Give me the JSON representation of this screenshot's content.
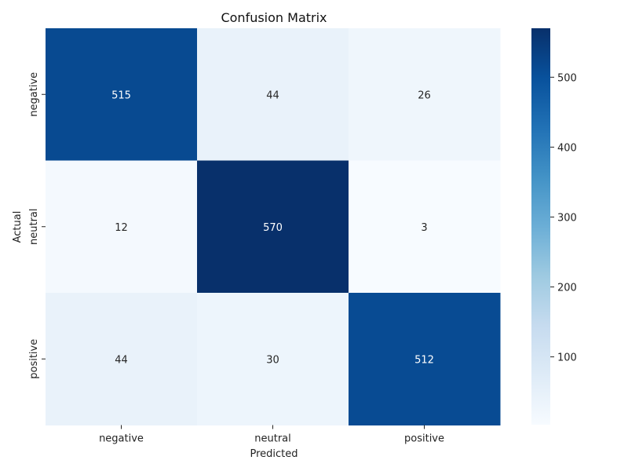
{
  "chart_data": {
    "type": "heatmap",
    "title": "Confusion Matrix",
    "xlabel": "Predicted",
    "ylabel": "Actual",
    "x_categories": [
      "negative",
      "neutral",
      "positive"
    ],
    "y_categories": [
      "negative",
      "neutral",
      "positive"
    ],
    "values": [
      [
        515,
        44,
        26
      ],
      [
        12,
        570,
        3
      ],
      [
        44,
        30,
        512
      ]
    ],
    "colormap": "Blues",
    "value_range": [
      3,
      570
    ],
    "colorbar_ticks": [
      100,
      200,
      300,
      400,
      500
    ],
    "annotations": true,
    "grid": false
  }
}
